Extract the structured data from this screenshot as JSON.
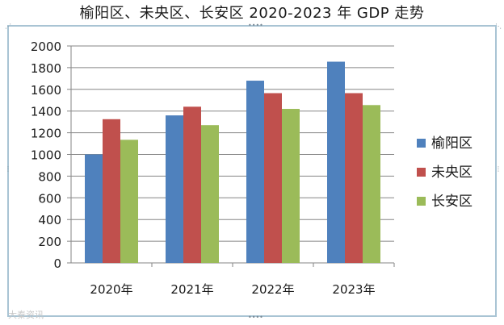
{
  "title": "榆阳区、未央区、长安区 2020-2023 年 GDP 走势",
  "watermark": "大秦资讯",
  "colors": {
    "frame": "#a9c4d4",
    "grid": "#868686"
  },
  "chart_data": {
    "type": "bar",
    "title": "榆阳区、未央区、长安区 2020-2023 年 GDP 走势",
    "categories": [
      "2020年",
      "2021年",
      "2022年",
      "2023年"
    ],
    "ylim": [
      0,
      2000
    ],
    "yticks": [
      0,
      200,
      400,
      600,
      800,
      1000,
      1200,
      1400,
      1600,
      1800,
      2000
    ],
    "grid": true,
    "legend_position": "right",
    "series": [
      {
        "name": "榆阳区",
        "color": "#4f81bd",
        "values": [
          1000,
          1360,
          1680,
          1855
        ]
      },
      {
        "name": "未央区",
        "color": "#c0504d",
        "values": [
          1325,
          1440,
          1565,
          1565
        ]
      },
      {
        "name": "长安区",
        "color": "#9bbb59",
        "values": [
          1135,
          1270,
          1420,
          1455
        ]
      }
    ]
  }
}
